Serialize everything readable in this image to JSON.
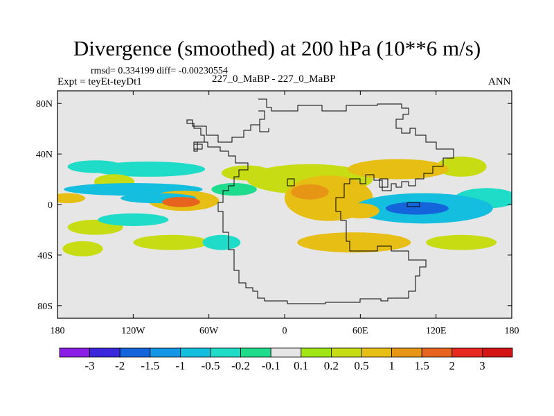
{
  "title": "Divergence (smoothed) at 200 hPa (10**6 m/s)",
  "stats_line": "rmsd= 0.334199  diff= -0.00230554",
  "left_label": "Expt = teyEt-teyDt1",
  "center_label": "227_0_MaBP - 227_0_MaBP",
  "right_label": "ANN",
  "chart_data": {
    "type": "heatmap",
    "title": "Divergence (smoothed) at 200 hPa (10**6 m/s)",
    "projection": "cylindrical equidistant",
    "xlim": [
      -180,
      180
    ],
    "ylim": [
      -90,
      90
    ],
    "x_ticks": [
      {
        "value": -180,
        "label": "180"
      },
      {
        "value": -120,
        "label": "120W"
      },
      {
        "value": -60,
        "label": "60W"
      },
      {
        "value": 0,
        "label": "0"
      },
      {
        "value": 60,
        "label": "60E"
      },
      {
        "value": 120,
        "label": "120E"
      },
      {
        "value": 180,
        "label": "180"
      }
    ],
    "y_ticks": [
      {
        "value": 80,
        "label": "80N"
      },
      {
        "value": 40,
        "label": "40N"
      },
      {
        "value": 0,
        "label": "0"
      },
      {
        "value": -40,
        "label": "40S"
      },
      {
        "value": -80,
        "label": "80S"
      }
    ],
    "colorbar": {
      "labels": [
        "-3",
        "-2",
        "-1.5",
        "-1",
        "-0.5",
        "-0.2",
        "-0.1",
        "0.1",
        "0.2",
        "0.5",
        "1",
        "1.5",
        "2",
        "3"
      ],
      "colors": [
        "#8a1ee6",
        "#3c28dc",
        "#1464dc",
        "#1496e6",
        "#14bede",
        "#1edcc8",
        "#1edc8c",
        "#e6e6e6",
        "#a0e614",
        "#c8dc14",
        "#e6be14",
        "#e69614",
        "#e6641e",
        "#e6281e",
        "#d21414"
      ]
    },
    "field_blobs": [
      {
        "lon": -108,
        "lat": 28,
        "rlon": 45,
        "rlat": 6,
        "value": -0.3
      },
      {
        "lon": -150,
        "lat": 30,
        "rlon": 22,
        "rlat": 5,
        "value": -0.3
      },
      {
        "lon": -120,
        "lat": 12,
        "rlon": 55,
        "rlat": 5,
        "value": -0.6
      },
      {
        "lon": -100,
        "lat": 5,
        "rlon": 30,
        "rlat": 4,
        "value": -1.0
      },
      {
        "lon": -135,
        "lat": 18,
        "rlon": 16,
        "rlat": 6,
        "value": 0.4
      },
      {
        "lon": -80,
        "lat": 3,
        "rlon": 28,
        "rlat": 8,
        "value": 0.6
      },
      {
        "lon": -82,
        "lat": 2,
        "rlon": 15,
        "rlat": 4,
        "value": 1.5
      },
      {
        "lon": -172,
        "lat": 5,
        "rlon": 14,
        "rlat": 4,
        "value": 0.5
      },
      {
        "lon": -150,
        "lat": -18,
        "rlon": 22,
        "rlat": 6,
        "value": 0.3
      },
      {
        "lon": -120,
        "lat": -12,
        "rlon": 28,
        "rlat": 5,
        "value": -0.4
      },
      {
        "lon": -160,
        "lat": -35,
        "rlon": 16,
        "rlat": 6,
        "value": 0.3
      },
      {
        "lon": -90,
        "lat": -30,
        "rlon": 30,
        "rlat": 6,
        "value": 0.3
      },
      {
        "lon": -50,
        "lat": -30,
        "rlon": 15,
        "rlat": 6,
        "value": -0.4
      },
      {
        "lon": -30,
        "lat": 25,
        "rlon": 20,
        "rlat": 6,
        "value": 0.3
      },
      {
        "lon": -40,
        "lat": 12,
        "rlon": 18,
        "rlat": 5,
        "value": -0.2
      },
      {
        "lon": 35,
        "lat": 5,
        "rlon": 35,
        "rlat": 18,
        "value": 0.6
      },
      {
        "lon": 20,
        "lat": 10,
        "rlon": 15,
        "rlat": 6,
        "value": 1.2
      },
      {
        "lon": 20,
        "lat": 20,
        "rlon": 50,
        "rlat": 12,
        "value": 0.3
      },
      {
        "lon": 90,
        "lat": 28,
        "rlon": 40,
        "rlat": 8,
        "value": 0.5
      },
      {
        "lon": 140,
        "lat": 30,
        "rlon": 20,
        "rlat": 8,
        "value": 0.3
      },
      {
        "lon": 160,
        "lat": 5,
        "rlon": 25,
        "rlat": 8,
        "value": -0.3
      },
      {
        "lon": 110,
        "lat": -3,
        "rlon": 55,
        "rlat": 12,
        "value": -0.6
      },
      {
        "lon": 105,
        "lat": -3,
        "rlon": 25,
        "rlat": 5,
        "value": -1.8
      },
      {
        "lon": 55,
        "lat": -30,
        "rlon": 45,
        "rlat": 8,
        "value": 0.5
      },
      {
        "lon": 140,
        "lat": -30,
        "rlon": 28,
        "rlat": 6,
        "value": 0.3
      },
      {
        "lon": 60,
        "lat": -5,
        "rlon": 15,
        "rlat": 6,
        "value": 0.6
      }
    ]
  }
}
